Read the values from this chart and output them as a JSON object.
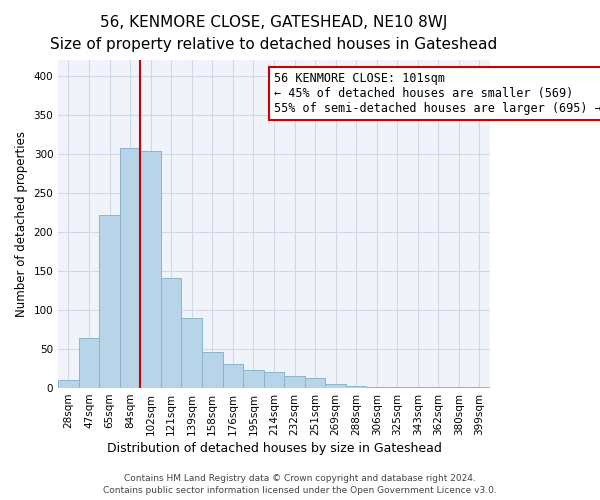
{
  "title": "56, KENMORE CLOSE, GATESHEAD, NE10 8WJ",
  "subtitle": "Size of property relative to detached houses in Gateshead",
  "xlabel": "Distribution of detached houses by size in Gateshead",
  "ylabel": "Number of detached properties",
  "categories": [
    "28sqm",
    "47sqm",
    "65sqm",
    "84sqm",
    "102sqm",
    "121sqm",
    "139sqm",
    "158sqm",
    "176sqm",
    "195sqm",
    "214sqm",
    "232sqm",
    "251sqm",
    "269sqm",
    "288sqm",
    "306sqm",
    "325sqm",
    "343sqm",
    "362sqm",
    "380sqm",
    "399sqm"
  ],
  "values": [
    10,
    64,
    222,
    307,
    304,
    141,
    90,
    46,
    31,
    23,
    21,
    16,
    13,
    5,
    3,
    2,
    2,
    1,
    1,
    1,
    1
  ],
  "bar_color": "#b8d4e8",
  "bar_edge_color": "#8ab4d0",
  "vline_color": "#cc0000",
  "annotation_text": "56 KENMORE CLOSE: 101sqm\n← 45% of detached houses are smaller (569)\n55% of semi-detached houses are larger (695) →",
  "annotation_box_color": "#ffffff",
  "annotation_box_edge": "#cc0000",
  "ylim": [
    0,
    420
  ],
  "yticks": [
    0,
    50,
    100,
    150,
    200,
    250,
    300,
    350,
    400
  ],
  "footer1": "Contains HM Land Registry data © Crown copyright and database right 2024.",
  "footer2": "Contains public sector information licensed under the Open Government Licence v3.0.",
  "title_fontsize": 11,
  "subtitle_fontsize": 9.5,
  "xlabel_fontsize": 9,
  "ylabel_fontsize": 8.5,
  "tick_fontsize": 7.5,
  "footer_fontsize": 6.5,
  "annotation_fontsize": 8.5,
  "grid_color": "#d0d8e8",
  "background_color": "#f0f4fa"
}
